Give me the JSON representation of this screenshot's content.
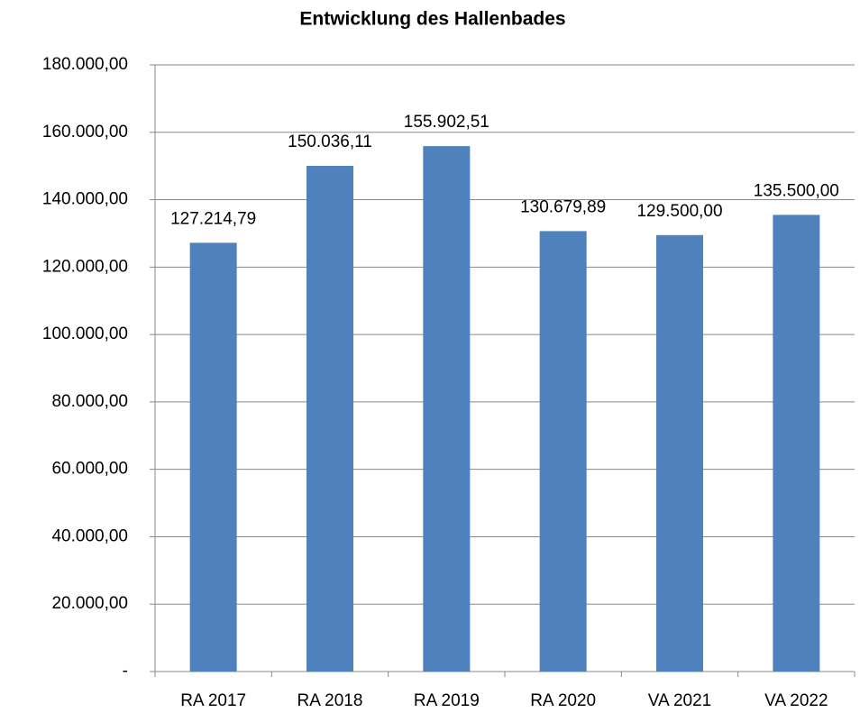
{
  "chart_data": {
    "type": "bar",
    "title": "Entwicklung des Hallenbades",
    "categories": [
      "RA 2017",
      "RA 2018",
      "RA 2019",
      "RA 2020",
      "VA 2021",
      "VA 2022"
    ],
    "values": [
      127214.79,
      150036.11,
      155902.51,
      130679.89,
      129500,
      135500
    ],
    "value_labels": [
      "127.214,79",
      "150.036,11",
      "155.902,51",
      "130.679,89",
      "129.500,00",
      "135.500,00"
    ],
    "color": "#4f81bd",
    "ylim": [
      0,
      180000
    ],
    "yticks": [
      {
        "value": 0,
        "label": "-"
      },
      {
        "value": 20000,
        "label": "20.000,00"
      },
      {
        "value": 40000,
        "label": "40.000,00"
      },
      {
        "value": 60000,
        "label": "60.000,00"
      },
      {
        "value": 80000,
        "label": "80.000,00"
      },
      {
        "value": 100000,
        "label": "100.000,00"
      },
      {
        "value": 120000,
        "label": "120.000,00"
      },
      {
        "value": 140000,
        "label": "140.000,00"
      },
      {
        "value": 160000,
        "label": "160.000,00"
      },
      {
        "value": 180000,
        "label": "180.000,00"
      }
    ],
    "grid": true
  }
}
